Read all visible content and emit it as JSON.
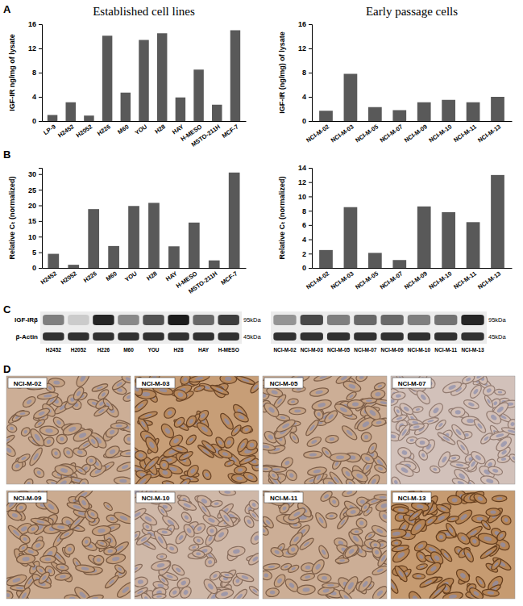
{
  "panel_labels": [
    "A",
    "B",
    "C",
    "D"
  ],
  "chart_data": [
    {
      "type": "bar",
      "title": "Established cell lines",
      "y_label": "IGF-IR ng/mg of lysate",
      "categories": [
        "LP-9",
        "H2452",
        "H2052",
        "H226",
        "M60",
        "YOU",
        "H28",
        "HAY",
        "H-MESO",
        "MSTO-211H",
        "MCF-7"
      ],
      "values": [
        1.0,
        3.1,
        0.9,
        14.1,
        4.7,
        13.4,
        14.5,
        3.9,
        8.5,
        2.7,
        15.0
      ],
      "color": "#595959",
      "ylim": [
        0,
        16
      ],
      "yticks": [
        0,
        4,
        8,
        12,
        16
      ]
    },
    {
      "type": "bar",
      "title": "Early passage cells",
      "y_label": "IGF-IR (ng/mg) of lysate",
      "categories": [
        "NCI-M-02",
        "NCI-M-03",
        "NCI-M-05",
        "NCI-M-07",
        "NCI-M-09",
        "NCI-M-10",
        "NCI-M-11",
        "NCI-M-13"
      ],
      "values": [
        1.7,
        7.8,
        2.3,
        1.8,
        3.1,
        3.5,
        3.1,
        4.0
      ],
      "color": "#595959",
      "ylim": [
        0,
        16
      ],
      "yticks": [
        0,
        4,
        8,
        12,
        16
      ]
    },
    {
      "type": "bar",
      "y_label": "Relative Cₜ (normalized)",
      "categories": [
        "H2452",
        "H2052",
        "H226",
        "M60",
        "YOU",
        "H28",
        "HAY",
        "H-MESO",
        "MSTO-211H",
        "MCF-7"
      ],
      "values": [
        4.5,
        1.0,
        18.8,
        7.0,
        19.8,
        20.8,
        6.9,
        14.5,
        2.4,
        30.5
      ],
      "color": "#595959",
      "ylim": [
        0,
        32
      ],
      "yticks": [
        0,
        5,
        10,
        15,
        20,
        25,
        30
      ]
    },
    {
      "type": "bar",
      "y_label": "Relative Cₜ (normalized)",
      "categories": [
        "NCI-M-02",
        "NCI-M-03",
        "NCI-M-05",
        "NCI-M-07",
        "NCI-M-09",
        "NCI-M-10",
        "NCI-M-11",
        "NCI-M-13"
      ],
      "values": [
        2.5,
        8.5,
        2.1,
        1.1,
        8.6,
        7.8,
        6.4,
        13.0
      ],
      "color": "#595959",
      "ylim": [
        0,
        14
      ],
      "yticks": [
        0,
        2,
        4,
        6,
        8,
        10,
        12,
        14
      ]
    }
  ],
  "western_blot": {
    "rows": [
      "IGF-IRβ",
      "β-Actin"
    ],
    "sizes": [
      "95kDa",
      "45kDa"
    ],
    "blots": [
      {
        "lanes": [
          "H2452",
          "H2052",
          "H226",
          "M60",
          "YOU",
          "H28",
          "HAY",
          "H-MESO"
        ],
        "band_intensity": [
          [
            0.5,
            0.15,
            0.9,
            0.45,
            0.7,
            0.95,
            0.6,
            0.8
          ],
          [
            0.85,
            0.85,
            0.85,
            0.85,
            0.85,
            0.85,
            0.85,
            0.85
          ]
        ]
      },
      {
        "lanes": [
          "NCI-M-02",
          "NCI-M-03",
          "NCI-M-05",
          "NCI-M-07",
          "NCI-M-09",
          "NCI-M-10",
          "NCI-M-11",
          "NCI-M-13"
        ],
        "band_intensity": [
          [
            0.4,
            0.75,
            0.5,
            0.6,
            0.6,
            0.5,
            0.55,
            0.9
          ],
          [
            0.85,
            0.85,
            0.85,
            0.85,
            0.85,
            0.85,
            0.85,
            0.85
          ]
        ]
      }
    ]
  },
  "ihc": {
    "samples": [
      "NCI-M-02",
      "NCI-M-03",
      "NCI-M-05",
      "NCI-M-07",
      "NCI-M-09",
      "NCI-M-10",
      "NCI-M-11",
      "NCI-M-13"
    ],
    "stain_intensity": [
      0.6,
      0.85,
      0.6,
      0.3,
      0.65,
      0.45,
      0.6,
      0.9
    ]
  }
}
